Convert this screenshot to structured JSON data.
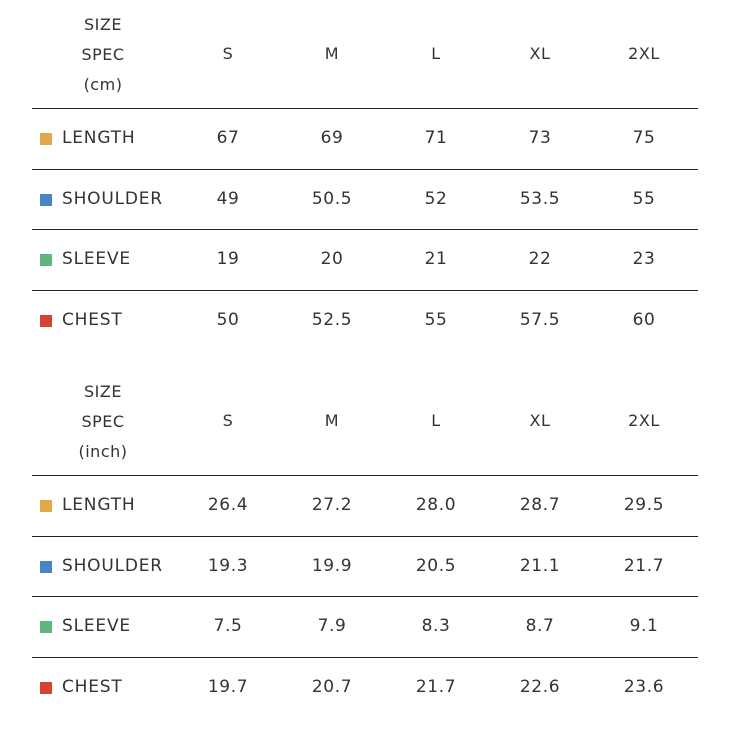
{
  "tables": [
    {
      "unit_label": [
        "SIZE",
        "SPEC",
        "(cm)"
      ],
      "sizes": [
        "S",
        "M",
        "L",
        "XL",
        "2XL"
      ],
      "rows": [
        {
          "label": "LENGTH",
          "color": "#dfa94a",
          "values": [
            "67",
            "69",
            "71",
            "73",
            "75"
          ]
        },
        {
          "label": "SHOULDER",
          "color": "#4a84c7",
          "values": [
            "49",
            "50.5",
            "52",
            "53.5",
            "55"
          ]
        },
        {
          "label": "SLEEVE",
          "color": "#62b57e",
          "values": [
            "19",
            "20",
            "21",
            "22",
            "23"
          ]
        },
        {
          "label": "CHEST",
          "color": "#d84230",
          "values": [
            "50",
            "52.5",
            "55",
            "57.5",
            "60"
          ]
        }
      ]
    },
    {
      "unit_label": [
        "SIZE",
        "SPEC",
        "(inch)"
      ],
      "sizes": [
        "S",
        "M",
        "L",
        "XL",
        "2XL"
      ],
      "rows": [
        {
          "label": "LENGTH",
          "color": "#dfa94a",
          "values": [
            "26.4",
            "27.2",
            "28.0",
            "28.7",
            "29.5"
          ]
        },
        {
          "label": "SHOULDER",
          "color": "#4a84c7",
          "values": [
            "19.3",
            "19.9",
            "20.5",
            "21.1",
            "21.7"
          ]
        },
        {
          "label": "SLEEVE",
          "color": "#62b57e",
          "values": [
            "7.5",
            "7.9",
            "8.3",
            "8.7",
            "9.1"
          ]
        },
        {
          "label": "CHEST",
          "color": "#d84230",
          "values": [
            "19.7",
            "20.7",
            "21.7",
            "22.6",
            "23.6"
          ]
        }
      ]
    }
  ]
}
